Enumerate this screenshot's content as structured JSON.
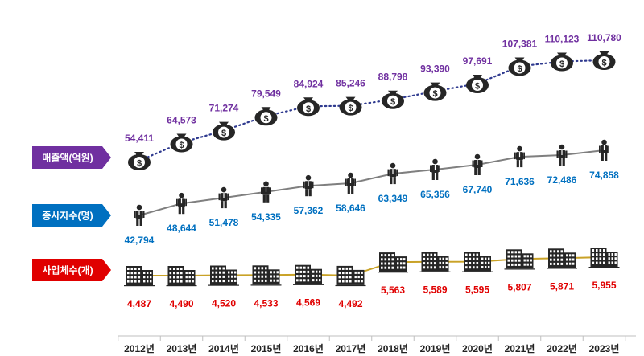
{
  "chart_data": {
    "type": "line",
    "categories": [
      "2012년",
      "2013년",
      "2014년",
      "2015년",
      "2016년",
      "2017년",
      "2018년",
      "2019년",
      "2020년",
      "2021년",
      "2022년",
      "2023년"
    ],
    "series": [
      {
        "key": "sales",
        "name": "매출액(억원)",
        "values": [
          54411,
          64573,
          71274,
          79549,
          84924,
          85246,
          88798,
          93390,
          97691,
          107381,
          110123,
          110780
        ],
        "labels": [
          "54,411",
          "64,573",
          "71,274",
          "79,549",
          "84,924",
          "85,246",
          "88,798",
          "93,390",
          "97,691",
          "107,381",
          "110,123",
          "110,780"
        ],
        "color": "#7030A0",
        "line_color": "#2F3A8F",
        "line_style": "dotted",
        "icon": "money-bag-icon"
      },
      {
        "key": "workers",
        "name": "종사자수(명)",
        "values": [
          42794,
          48644,
          51478,
          54335,
          57362,
          58646,
          63349,
          65356,
          67740,
          71636,
          72486,
          74858
        ],
        "labels": [
          "42,794",
          "48,644",
          "51,478",
          "54,335",
          "57,362",
          "58,646",
          "63,349",
          "65,356",
          "67,740",
          "71,636",
          "72,486",
          "74,858"
        ],
        "color": "#0070C0",
        "line_color": "#7F7F7F",
        "line_style": "solid",
        "icon": "person-icon"
      },
      {
        "key": "companies",
        "name": "사업체수(개)",
        "values": [
          4487,
          4490,
          4520,
          4533,
          4569,
          4492,
          5563,
          5589,
          5595,
          5807,
          5871,
          5955
        ],
        "labels": [
          "4,487",
          "4,490",
          "4,520",
          "4,533",
          "4,569",
          "4,492",
          "5,563",
          "5,589",
          "5,595",
          "5,807",
          "5,871",
          "5,955"
        ],
        "color": "#E00000",
        "line_color": "#C9A227",
        "line_style": "solid",
        "icon": "building-icon"
      }
    ],
    "tag_colors": {
      "sales": "#7030A0",
      "workers": "#0070C0",
      "companies": "#E00000"
    },
    "grid": false,
    "legend": "left"
  }
}
